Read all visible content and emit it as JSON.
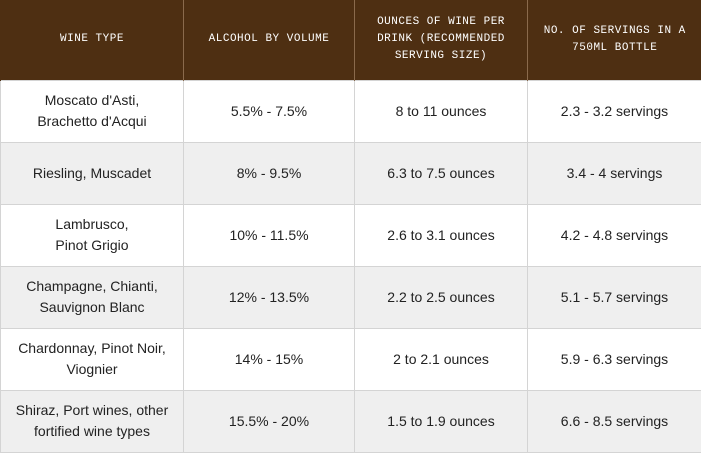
{
  "table": {
    "headers": [
      "WINE TYPE",
      "ALCOHOL BY VOLUME",
      "OUNCES OF WINE PER DRINK (RECOMMENDED SERVING SIZE)",
      "NO. OF SERVINGS IN A 750ML BOTTLE"
    ],
    "rows": [
      {
        "wine_line1": "Moscato d'Asti,",
        "wine_line2": "Brachetto d'Acqui",
        "abv": "5.5% - 7.5%",
        "ounces": "8 to 11 ounces",
        "servings": "2.3 - 3.2 servings"
      },
      {
        "wine_line1": "Riesling, Muscadet",
        "wine_line2": "",
        "abv": "8% - 9.5%",
        "ounces": "6.3 to 7.5 ounces",
        "servings": "3.4 - 4 servings"
      },
      {
        "wine_line1": "Lambrusco,",
        "wine_line2": "Pinot Grigio",
        "abv": "10% - 11.5%",
        "ounces": "2.6 to 3.1 ounces",
        "servings": "4.2 - 4.8 servings"
      },
      {
        "wine_line1": "Champagne, Chianti,",
        "wine_line2": "Sauvignon Blanc",
        "abv": "12% - 13.5%",
        "ounces": "2.2 to 2.5 ounces",
        "servings": "5.1 - 5.7 servings"
      },
      {
        "wine_line1": "Chardonnay, Pinot Noir,",
        "wine_line2": "Viognier",
        "abv": "14% - 15%",
        "ounces": "2 to 2.1 ounces",
        "servings": "5.9 - 6.3 servings"
      },
      {
        "wine_line1": "Shiraz, Port wines, other",
        "wine_line2": "fortified wine types",
        "abv": "15.5% - 20%",
        "ounces": "1.5 to 1.9 ounces",
        "servings": "6.6 - 8.5 servings"
      }
    ]
  },
  "colors": {
    "header_background": "#4e2f12",
    "header_text": "#ffffff",
    "row_alt_background": "#efefef",
    "row_background": "#ffffff",
    "cell_text": "#222222",
    "border": "#d4d4d4"
  }
}
